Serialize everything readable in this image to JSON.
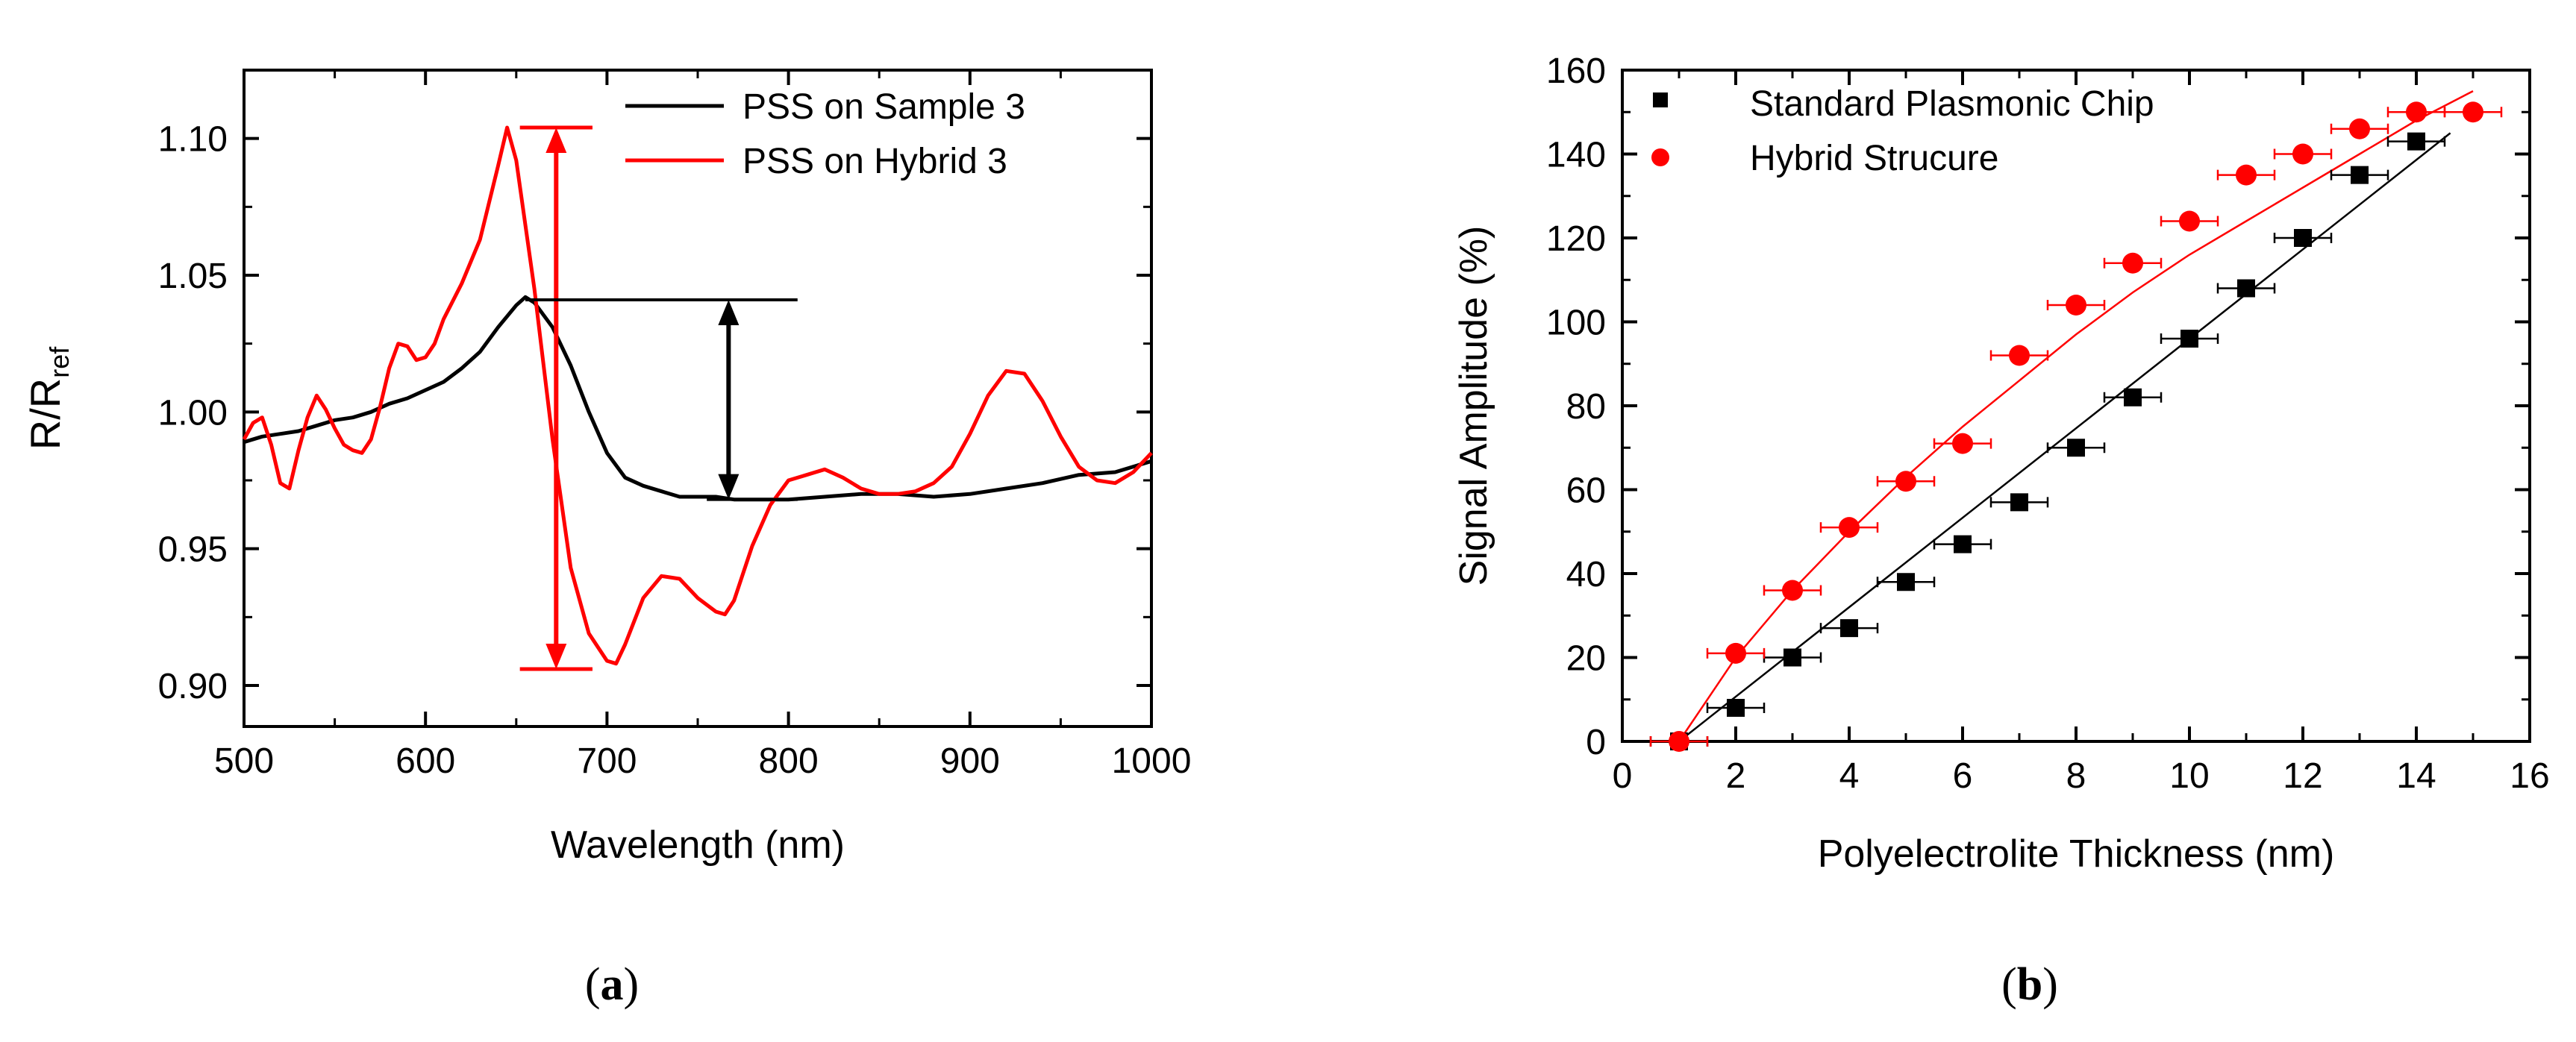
{
  "chart_data": [
    {
      "type": "line",
      "panel_label": "(a)",
      "panel_letter": "a",
      "xlabel": "Wavelength (nm)",
      "ylabel_main": "R/R",
      "ylabel_sub": "ref",
      "xlim": [
        500,
        1000
      ],
      "ylim": [
        0.885,
        1.125
      ],
      "xticks": [
        500,
        600,
        700,
        800,
        900,
        1000
      ],
      "xtick_labels": [
        "500",
        "600",
        "700",
        "800",
        "900",
        "1000"
      ],
      "yticks": [
        0.9,
        0.95,
        1.0,
        1.05,
        1.1
      ],
      "ytick_labels": [
        "0.90",
        "0.95",
        "1.00",
        "1.05",
        "1.10"
      ],
      "legend_position": "top-right",
      "series": [
        {
          "name": "PSS on Sample 3",
          "color": "#000000",
          "x": [
            500,
            510,
            520,
            530,
            540,
            550,
            560,
            570,
            580,
            590,
            600,
            610,
            620,
            630,
            640,
            650,
            655,
            660,
            670,
            680,
            690,
            700,
            710,
            720,
            730,
            740,
            750,
            760,
            770,
            780,
            800,
            820,
            840,
            860,
            880,
            900,
            920,
            940,
            960,
            980,
            1000
          ],
          "y": [
            0.989,
            0.991,
            0.992,
            0.993,
            0.995,
            0.997,
            0.998,
            1.0,
            1.003,
            1.005,
            1.008,
            1.011,
            1.016,
            1.022,
            1.031,
            1.039,
            1.042,
            1.04,
            1.031,
            1.017,
            1.0,
            0.985,
            0.976,
            0.973,
            0.971,
            0.969,
            0.969,
            0.969,
            0.968,
            0.968,
            0.968,
            0.969,
            0.97,
            0.97,
            0.969,
            0.97,
            0.972,
            0.974,
            0.977,
            0.978,
            0.982
          ]
        },
        {
          "name": "PSS on Hybrid 3",
          "color": "#ff0000",
          "x": [
            500,
            505,
            510,
            515,
            520,
            525,
            530,
            535,
            540,
            545,
            550,
            555,
            560,
            565,
            570,
            575,
            580,
            585,
            590,
            595,
            600,
            605,
            610,
            620,
            630,
            640,
            645,
            650,
            660,
            670,
            680,
            690,
            700,
            705,
            710,
            720,
            730,
            740,
            750,
            760,
            765,
            770,
            780,
            790,
            800,
            810,
            820,
            830,
            840,
            850,
            860,
            870,
            880,
            890,
            900,
            910,
            920,
            930,
            940,
            950,
            960,
            970,
            980,
            990,
            1000
          ],
          "y": [
            0.99,
            0.996,
            0.998,
            0.988,
            0.974,
            0.972,
            0.986,
            0.998,
            1.006,
            1.001,
            0.994,
            0.988,
            0.986,
            0.985,
            0.99,
            1.002,
            1.016,
            1.025,
            1.024,
            1.019,
            1.02,
            1.025,
            1.034,
            1.047,
            1.063,
            1.09,
            1.104,
            1.092,
            1.045,
            0.99,
            0.943,
            0.919,
            0.909,
            0.908,
            0.915,
            0.932,
            0.94,
            0.939,
            0.932,
            0.927,
            0.926,
            0.931,
            0.951,
            0.966,
            0.975,
            0.977,
            0.979,
            0.976,
            0.972,
            0.97,
            0.97,
            0.971,
            0.974,
            0.98,
            0.992,
            1.006,
            1.015,
            1.014,
            1.004,
            0.991,
            0.98,
            0.975,
            0.974,
            0.978,
            0.985
          ]
        }
      ],
      "annotations": [
        {
          "type": "double-arrow",
          "color": "#ff0000",
          "x": 672,
          "y_from": 1.104,
          "y_to": 0.906,
          "cap_half_width": 20
        },
        {
          "type": "double-arrow",
          "color": "#000000",
          "x": 767,
          "y_from": 1.041,
          "y_to": 0.968
        },
        {
          "type": "hline",
          "color": "#000000",
          "y": 1.041,
          "x_from": 655,
          "x_to": 805
        },
        {
          "type": "hline",
          "color": "#000000",
          "y": 0.968,
          "x_from": 755,
          "x_to": 805
        }
      ]
    },
    {
      "type": "scatter",
      "panel_label": "(b)",
      "panel_letter": "b",
      "xlabel": "Polyelectrolite Thickness (nm)",
      "ylabel": "Signal Amplitude (%)",
      "xlim": [
        0,
        16
      ],
      "ylim": [
        0,
        160
      ],
      "xticks": [
        0,
        2,
        4,
        6,
        8,
        10,
        12,
        14,
        16
      ],
      "xtick_labels": [
        "0",
        "2",
        "4",
        "6",
        "8",
        "10",
        "12",
        "14",
        "16"
      ],
      "yticks": [
        0,
        20,
        40,
        60,
        80,
        100,
        120,
        140,
        160
      ],
      "ytick_labels": [
        "0",
        "20",
        "40",
        "60",
        "80",
        "100",
        "120",
        "140",
        "160"
      ],
      "legend_position": "top-left",
      "series": [
        {
          "name": "Standard Plasmonic Chip",
          "color": "#000000",
          "marker": "square",
          "x": [
            1,
            2,
            3,
            4,
            5,
            6,
            7,
            8,
            9,
            10,
            11,
            12,
            13,
            14
          ],
          "y": [
            0,
            8,
            20,
            27,
            38,
            47,
            57,
            70,
            82,
            96,
            108,
            120,
            135,
            143
          ],
          "x_error": 0.5,
          "fit_line": {
            "x": [
              1,
              14.6
            ],
            "y": [
              0,
              145
            ]
          }
        },
        {
          "name": "Hybrid Strucure",
          "color": "#ff0000",
          "marker": "circle",
          "x": [
            1,
            2,
            3,
            4,
            5,
            6,
            7,
            8,
            9,
            10,
            11,
            12,
            13,
            14,
            15
          ],
          "y": [
            0,
            21,
            36,
            51,
            62,
            71,
            92,
            104,
            114,
            124,
            135,
            140,
            146,
            150,
            150
          ],
          "x_error": 0.5,
          "fit_line": {
            "x": [
              1,
              1.5,
              2,
              3,
              4,
              5,
              6,
              7,
              8,
              9,
              10,
              11,
              12,
              13,
              14,
              15
            ],
            "y": [
              0,
              10,
              20,
              36,
              50,
              63,
              75,
              86,
              97,
              107,
              116,
              124,
              132,
              140,
              148,
              155
            ]
          }
        }
      ]
    }
  ]
}
